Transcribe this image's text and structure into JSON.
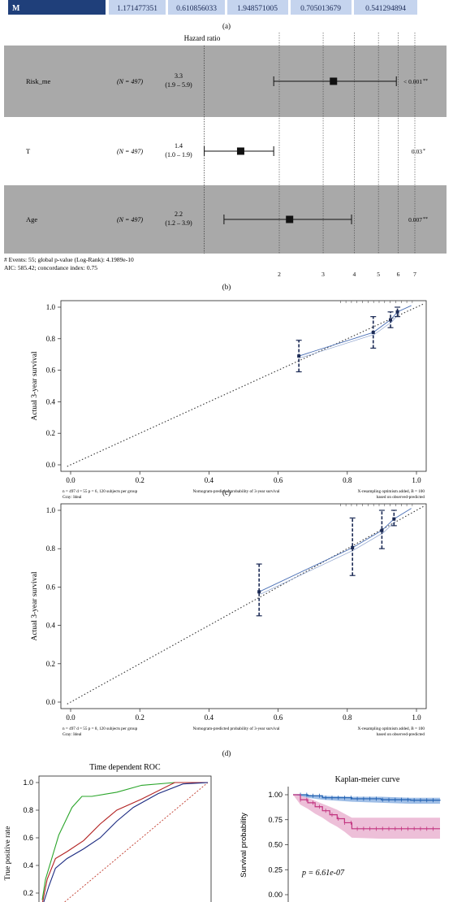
{
  "top_table": {
    "row_label": "M",
    "cells": [
      "1.171477351",
      "0.610856033",
      "1.948571005",
      "0.705013679",
      "0.541294894"
    ],
    "colors": {
      "header": "#1f3f7a",
      "cell": "#c5d4ee",
      "text": "#1b2a55"
    }
  },
  "panel_labels": {
    "a": "(a)",
    "b": "(b)",
    "c": "(c)",
    "d": "(d)"
  },
  "forest": {
    "title": "Hazard ratio",
    "rows": [
      {
        "name": "Risk_me",
        "n": "(N = 497)",
        "hr": "3.3",
        "ci": "(1.9 – 5.9)",
        "est": 3.3,
        "low": 1.9,
        "high": 5.9,
        "p": "< 0.001",
        "stars": "**",
        "shaded": true
      },
      {
        "name": "T",
        "n": "(N = 497)",
        "hr": "1.4",
        "ci": "(1.0 – 1.9)",
        "est": 1.4,
        "low": 1.0,
        "high": 1.9,
        "p": "0.03",
        "stars": "*",
        "shaded": false
      },
      {
        "name": "Age",
        "n": "(N = 497)",
        "hr": "2.2",
        "ci": "(1.2 – 3.9)",
        "est": 2.2,
        "low": 1.2,
        "high": 3.9,
        "p": "0.007",
        "stars": "**",
        "shaded": true
      }
    ],
    "footer_line1": "# Events: 55; global p-value (Log-Rank): 4.1989e-10",
    "footer_line2": "AIC: 585.42; concordance index: 0.75",
    "ticks": [
      "2",
      "3",
      "4",
      "5",
      "6",
      "7"
    ],
    "tick_values": [
      2,
      3,
      4,
      5,
      6,
      7
    ],
    "colors": {
      "shade": "#a9a9a9"
    }
  },
  "chart_data": [
    {
      "type": "line",
      "panel": "c",
      "ylabel": "Actual 3-year survival",
      "xticks": [
        "0.0",
        "0.2",
        "0.4",
        "0.6",
        "0.8",
        "1.0"
      ],
      "yticks": [
        "0.0",
        "0.2",
        "0.4",
        "0.6",
        "0.8",
        "1.0"
      ],
      "xlim": [
        0,
        1
      ],
      "ylim": [
        0,
        1
      ],
      "footer_left1": "n = 497 d = 55 p = 6, 120 subjects per group",
      "footer_left2": "Gray: Ideal",
      "footer_mid": "Nomogram-predicted probability of 3-year survival",
      "footer_right1": "X-resampling optimism added, B = 100",
      "footer_right2": "based on observed-predicted",
      "calibration": {
        "x": [
          0.66,
          0.875,
          0.925,
          0.945
        ],
        "y": [
          0.69,
          0.84,
          0.92,
          0.97
        ],
        "low": [
          0.59,
          0.74,
          0.87,
          0.94
        ],
        "high": [
          0.79,
          0.94,
          0.97,
          1.0
        ]
      }
    },
    {
      "type": "line",
      "panel": "d",
      "ylabel": "Actual 3-year survival",
      "xticks": [
        "0.0",
        "0.2",
        "0.4",
        "0.6",
        "0.8",
        "1.0"
      ],
      "yticks": [
        "0.0",
        "0.2",
        "0.4",
        "0.6",
        "0.8",
        "1.0"
      ],
      "xlim": [
        0,
        1
      ],
      "ylim": [
        0,
        1
      ],
      "footer_left1": "n = 497 d = 55 p = 8, 120 subjects per group",
      "footer_left2": "Gray: Ideal",
      "footer_mid": "Nomogram-predicted probability of 3-year survival",
      "footer_right1": "X-resampling optimism added, B = 100",
      "footer_right2": "based on observed-predicted",
      "calibration": {
        "x": [
          0.545,
          0.815,
          0.9,
          0.935
        ],
        "y": [
          0.575,
          0.805,
          0.895,
          0.955
        ],
        "low": [
          0.45,
          0.66,
          0.8,
          0.92
        ],
        "high": [
          0.72,
          0.96,
          1.0,
          1.0
        ]
      }
    },
    {
      "type": "line",
      "panel": "e",
      "title": "Time dependent ROC",
      "ylabel": "True positive rate",
      "yticks": [
        "1.0",
        "0.8",
        "0.6",
        "0.4",
        "0.2"
      ],
      "ylim": [
        0,
        1
      ],
      "series": [
        {
          "color": "#2aa52a",
          "x": [
            0,
            0.02,
            0.05,
            0.1,
            0.18,
            0.24,
            0.3,
            0.45,
            0.6,
            0.8,
            1.0
          ],
          "y": [
            0.15,
            0.3,
            0.42,
            0.62,
            0.82,
            0.9,
            0.9,
            0.93,
            0.98,
            1.0,
            1.0
          ]
        },
        {
          "color": "#b22222",
          "x": [
            0,
            0.03,
            0.08,
            0.15,
            0.25,
            0.35,
            0.45,
            0.6,
            0.8,
            1.0
          ],
          "y": [
            0.12,
            0.3,
            0.45,
            0.5,
            0.58,
            0.7,
            0.8,
            0.88,
            1.0,
            1.0
          ]
        },
        {
          "color": "#1b2a80",
          "x": [
            0,
            0.04,
            0.08,
            0.15,
            0.25,
            0.35,
            0.45,
            0.55,
            0.7,
            0.85,
            1.0
          ],
          "y": [
            0.1,
            0.25,
            0.38,
            0.45,
            0.52,
            0.6,
            0.72,
            0.82,
            0.92,
            0.99,
            1.0
          ]
        }
      ]
    },
    {
      "type": "line",
      "panel": "f",
      "title": "Kaplan-meier curve",
      "ylabel": "Survival probability",
      "yticks": [
        "1.00",
        "0.75",
        "0.50",
        "0.25",
        "0.00"
      ],
      "ylim": [
        0,
        1
      ],
      "annotation": "p = 6.61e-07",
      "series": [
        {
          "color": "#1f5fb0",
          "band": "#7fa8de",
          "x": [
            0,
            0.1,
            0.2,
            0.4,
            0.6,
            0.8,
            1.0
          ],
          "y": [
            1.0,
            0.99,
            0.97,
            0.96,
            0.95,
            0.945,
            0.94
          ],
          "low": [
            1.0,
            0.97,
            0.95,
            0.93,
            0.92,
            0.91,
            0.91
          ],
          "high": [
            1.0,
            1.0,
            0.99,
            0.98,
            0.98,
            0.97,
            0.97
          ]
        },
        {
          "color": "#c2337f",
          "band": "#e7a9cb",
          "x": [
            0,
            0.05,
            0.1,
            0.15,
            0.2,
            0.25,
            0.3,
            0.35,
            0.4,
            0.6,
            0.8,
            1.0
          ],
          "y": [
            1.0,
            0.95,
            0.92,
            0.88,
            0.84,
            0.8,
            0.76,
            0.72,
            0.66,
            0.66,
            0.66,
            0.66
          ],
          "low": [
            1.0,
            0.9,
            0.86,
            0.81,
            0.77,
            0.72,
            0.68,
            0.63,
            0.57,
            0.56,
            0.56,
            0.56
          ],
          "high": [
            1.0,
            0.99,
            0.97,
            0.94,
            0.91,
            0.88,
            0.85,
            0.81,
            0.77,
            0.77,
            0.77,
            0.77
          ]
        }
      ]
    }
  ]
}
